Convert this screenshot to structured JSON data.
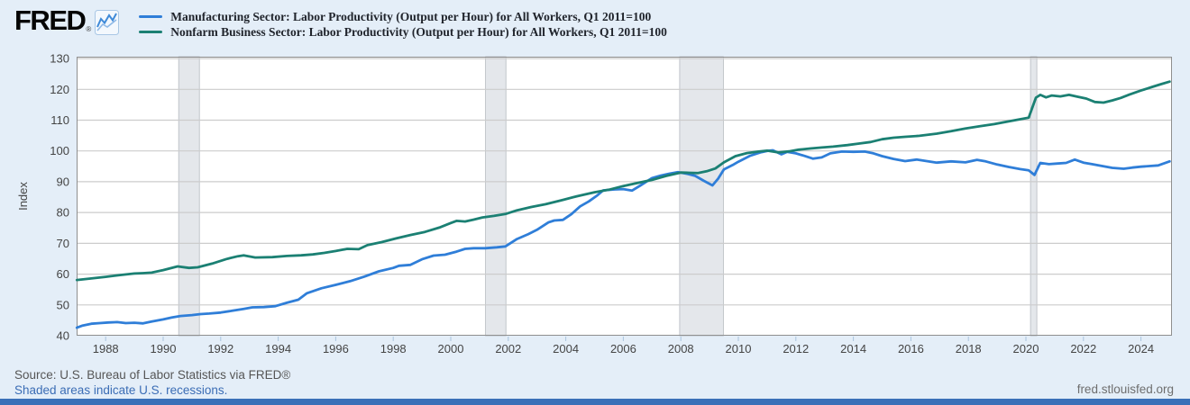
{
  "header": {
    "logo_text": "FRED",
    "logo_reg": "®",
    "legend": [
      {
        "label": "Manufacturing Sector: Labor Productivity (Output per Hour) for All Workers, Q1 2011=100",
        "color": "#2f7ed8"
      },
      {
        "label": "Nonfarm Business Sector: Labor Productivity (Output per Hour) for All Workers, Q1 2011=100",
        "color": "#1b8073"
      }
    ]
  },
  "footer": {
    "source_text": "Source: U.S. Bureau of Labor Statistics via FRED®",
    "recession_note": "Shaded areas indicate U.S. recessions.",
    "site_url": "fred.stlouisfed.org"
  },
  "colors": {
    "page_background": "#e4eef8",
    "plot_background": "#ffffff",
    "gridline": "#cccccc",
    "plot_border": "#8f8f8f",
    "recession_band_fill": "#e4e7eb",
    "recession_band_edge": "#b5bac0",
    "bottom_bar": "#3a70b8",
    "link": "#3b6db5"
  },
  "chart_data": {
    "type": "line",
    "title": "",
    "xlabel": "",
    "ylabel": "Index",
    "grid": true,
    "legend_position": "top-left",
    "xlim": [
      1986.99,
      2025.08
    ],
    "ylim": [
      40,
      130.6
    ],
    "x_ticks": [
      1988,
      1990,
      1992,
      1994,
      1996,
      1998,
      2000,
      2002,
      2004,
      2006,
      2008,
      2010,
      2012,
      2014,
      2016,
      2018,
      2020,
      2022,
      2024
    ],
    "y_ticks": [
      40,
      50,
      60,
      70,
      80,
      90,
      100,
      110,
      120,
      130
    ],
    "recession_bands": [
      [
        1990.54,
        1991.26
      ],
      [
        2001.21,
        2001.92
      ],
      [
        2007.96,
        2009.48
      ],
      [
        2020.16,
        2020.38
      ]
    ],
    "series": [
      {
        "name": "Manufacturing Sector: Labor Productivity (Output per Hour) for All Workers, Q1 2011=100",
        "color": "#2f7ed8",
        "points": [
          [
            1987.0,
            42.6
          ],
          [
            1987.2,
            43.3
          ],
          [
            1987.5,
            43.9
          ],
          [
            1987.8,
            44.1
          ],
          [
            1988.1,
            44.3
          ],
          [
            1988.4,
            44.4
          ],
          [
            1988.7,
            44.1
          ],
          [
            1989.0,
            44.2
          ],
          [
            1989.3,
            44.0
          ],
          [
            1989.6,
            44.6
          ],
          [
            1990.0,
            45.3
          ],
          [
            1990.3,
            45.9
          ],
          [
            1990.6,
            46.4
          ],
          [
            1991.0,
            46.7
          ],
          [
            1991.3,
            47.0
          ],
          [
            1991.6,
            47.2
          ],
          [
            1992.0,
            47.5
          ],
          [
            1992.4,
            48.1
          ],
          [
            1992.8,
            48.7
          ],
          [
            1993.1,
            49.2
          ],
          [
            1993.5,
            49.3
          ],
          [
            1993.9,
            49.6
          ],
          [
            1994.3,
            50.7
          ],
          [
            1994.7,
            51.7
          ],
          [
            1995.0,
            53.8
          ],
          [
            1995.5,
            55.4
          ],
          [
            1996.0,
            56.5
          ],
          [
            1996.5,
            57.7
          ],
          [
            1997.0,
            59.2
          ],
          [
            1997.5,
            60.9
          ],
          [
            1998.0,
            62.0
          ],
          [
            1998.2,
            62.7
          ],
          [
            1998.6,
            63.0
          ],
          [
            1999.0,
            64.8
          ],
          [
            1999.4,
            66.0
          ],
          [
            1999.8,
            66.3
          ],
          [
            2000.2,
            67.3
          ],
          [
            2000.5,
            68.2
          ],
          [
            2000.8,
            68.4
          ],
          [
            2001.2,
            68.4
          ],
          [
            2001.6,
            68.7
          ],
          [
            2001.9,
            69.0
          ],
          [
            2002.3,
            71.4
          ],
          [
            2002.7,
            73.0
          ],
          [
            2003.0,
            74.4
          ],
          [
            2003.4,
            76.8
          ],
          [
            2003.6,
            77.4
          ],
          [
            2003.9,
            77.6
          ],
          [
            2004.2,
            79.5
          ],
          [
            2004.5,
            82.0
          ],
          [
            2004.8,
            83.6
          ],
          [
            2005.1,
            85.6
          ],
          [
            2005.3,
            87.2
          ],
          [
            2005.7,
            87.5
          ],
          [
            2006.0,
            87.6
          ],
          [
            2006.3,
            87.1
          ],
          [
            2006.6,
            88.8
          ],
          [
            2007.0,
            91.2
          ],
          [
            2007.3,
            92.0
          ],
          [
            2007.6,
            92.6
          ],
          [
            2007.9,
            93.1
          ],
          [
            2008.2,
            92.6
          ],
          [
            2008.5,
            91.9
          ],
          [
            2008.8,
            90.3
          ],
          [
            2009.1,
            88.8
          ],
          [
            2009.3,
            91.0
          ],
          [
            2009.5,
            94.0
          ],
          [
            2009.8,
            95.4
          ],
          [
            2010.0,
            96.5
          ],
          [
            2010.4,
            98.4
          ],
          [
            2010.8,
            99.6
          ],
          [
            2011.0,
            100.0
          ],
          [
            2011.2,
            100.2
          ],
          [
            2011.5,
            98.9
          ],
          [
            2011.7,
            99.7
          ],
          [
            2012.0,
            99.2
          ],
          [
            2012.3,
            98.4
          ],
          [
            2012.6,
            97.5
          ],
          [
            2012.9,
            97.9
          ],
          [
            2013.2,
            99.2
          ],
          [
            2013.6,
            99.8
          ],
          [
            2014.0,
            99.7
          ],
          [
            2014.4,
            99.8
          ],
          [
            2014.7,
            99.2
          ],
          [
            2015.0,
            98.3
          ],
          [
            2015.4,
            97.4
          ],
          [
            2015.8,
            96.7
          ],
          [
            2016.2,
            97.2
          ],
          [
            2016.5,
            96.8
          ],
          [
            2016.9,
            96.2
          ],
          [
            2017.4,
            96.6
          ],
          [
            2017.9,
            96.3
          ],
          [
            2018.3,
            97.1
          ],
          [
            2018.6,
            96.6
          ],
          [
            2019.0,
            95.6
          ],
          [
            2019.4,
            94.8
          ],
          [
            2019.8,
            94.1
          ],
          [
            2020.1,
            93.7
          ],
          [
            2020.3,
            92.2
          ],
          [
            2020.5,
            96.1
          ],
          [
            2020.8,
            95.7
          ],
          [
            2021.1,
            95.9
          ],
          [
            2021.4,
            96.1
          ],
          [
            2021.7,
            97.2
          ],
          [
            2022.0,
            96.2
          ],
          [
            2022.3,
            95.7
          ],
          [
            2022.7,
            95.0
          ],
          [
            2023.0,
            94.5
          ],
          [
            2023.4,
            94.2
          ],
          [
            2023.7,
            94.6
          ],
          [
            2024.0,
            94.9
          ],
          [
            2024.3,
            95.1
          ],
          [
            2024.6,
            95.3
          ],
          [
            2025.0,
            96.6
          ]
        ]
      },
      {
        "name": "Nonfarm Business Sector: Labor Productivity (Output per Hour) for All Workers, Q1 2011=100",
        "color": "#1b8073",
        "points": [
          [
            1987.0,
            58.1
          ],
          [
            1987.5,
            58.6
          ],
          [
            1988.0,
            59.1
          ],
          [
            1988.5,
            59.7
          ],
          [
            1989.0,
            60.2
          ],
          [
            1989.3,
            60.3
          ],
          [
            1989.6,
            60.5
          ],
          [
            1990.0,
            61.3
          ],
          [
            1990.5,
            62.5
          ],
          [
            1990.9,
            62.0
          ],
          [
            1991.2,
            62.2
          ],
          [
            1991.7,
            63.4
          ],
          [
            1992.2,
            64.9
          ],
          [
            1992.6,
            65.8
          ],
          [
            1992.8,
            66.1
          ],
          [
            1993.2,
            65.4
          ],
          [
            1993.8,
            65.5
          ],
          [
            1994.3,
            65.9
          ],
          [
            1994.8,
            66.1
          ],
          [
            1995.2,
            66.4
          ],
          [
            1995.6,
            66.9
          ],
          [
            1996.0,
            67.5
          ],
          [
            1996.4,
            68.2
          ],
          [
            1996.8,
            68.1
          ],
          [
            1997.1,
            69.4
          ],
          [
            1997.6,
            70.4
          ],
          [
            1998.1,
            71.6
          ],
          [
            1998.6,
            72.7
          ],
          [
            1999.1,
            73.7
          ],
          [
            1999.6,
            75.1
          ],
          [
            2000.0,
            76.6
          ],
          [
            2000.2,
            77.3
          ],
          [
            2000.5,
            77.1
          ],
          [
            2000.8,
            77.7
          ],
          [
            2001.1,
            78.4
          ],
          [
            2001.5,
            78.9
          ],
          [
            2001.9,
            79.5
          ],
          [
            2002.3,
            80.7
          ],
          [
            2002.8,
            81.8
          ],
          [
            2003.3,
            82.7
          ],
          [
            2003.9,
            84.1
          ],
          [
            2004.4,
            85.3
          ],
          [
            2005.0,
            86.6
          ],
          [
            2005.5,
            87.4
          ],
          [
            2006.0,
            88.6
          ],
          [
            2006.5,
            89.6
          ],
          [
            2007.0,
            90.6
          ],
          [
            2007.5,
            91.9
          ],
          [
            2008.0,
            93.0
          ],
          [
            2008.3,
            92.9
          ],
          [
            2008.6,
            92.8
          ],
          [
            2008.9,
            93.4
          ],
          [
            2009.2,
            94.3
          ],
          [
            2009.5,
            96.3
          ],
          [
            2009.9,
            98.3
          ],
          [
            2010.3,
            99.3
          ],
          [
            2010.7,
            99.8
          ],
          [
            2011.0,
            100.1
          ],
          [
            2011.4,
            99.5
          ],
          [
            2011.8,
            99.9
          ],
          [
            2012.1,
            100.4
          ],
          [
            2012.5,
            100.8
          ],
          [
            2012.9,
            101.1
          ],
          [
            2013.3,
            101.4
          ],
          [
            2013.8,
            101.9
          ],
          [
            2014.2,
            102.4
          ],
          [
            2014.6,
            102.9
          ],
          [
            2015.0,
            103.8
          ],
          [
            2015.4,
            104.3
          ],
          [
            2015.8,
            104.6
          ],
          [
            2016.3,
            104.9
          ],
          [
            2016.9,
            105.6
          ],
          [
            2017.4,
            106.4
          ],
          [
            2017.9,
            107.3
          ],
          [
            2018.4,
            108.0
          ],
          [
            2018.9,
            108.7
          ],
          [
            2019.4,
            109.6
          ],
          [
            2019.8,
            110.3
          ],
          [
            2020.1,
            110.8
          ],
          [
            2020.35,
            117.3
          ],
          [
            2020.5,
            118.2
          ],
          [
            2020.7,
            117.4
          ],
          [
            2020.9,
            118.0
          ],
          [
            2021.2,
            117.7
          ],
          [
            2021.5,
            118.2
          ],
          [
            2021.8,
            117.6
          ],
          [
            2022.1,
            117.0
          ],
          [
            2022.4,
            115.9
          ],
          [
            2022.7,
            115.7
          ],
          [
            2023.0,
            116.4
          ],
          [
            2023.3,
            117.2
          ],
          [
            2023.6,
            118.3
          ],
          [
            2024.0,
            119.6
          ],
          [
            2024.4,
            120.8
          ],
          [
            2024.7,
            121.7
          ],
          [
            2025.0,
            122.5
          ]
        ]
      }
    ]
  }
}
